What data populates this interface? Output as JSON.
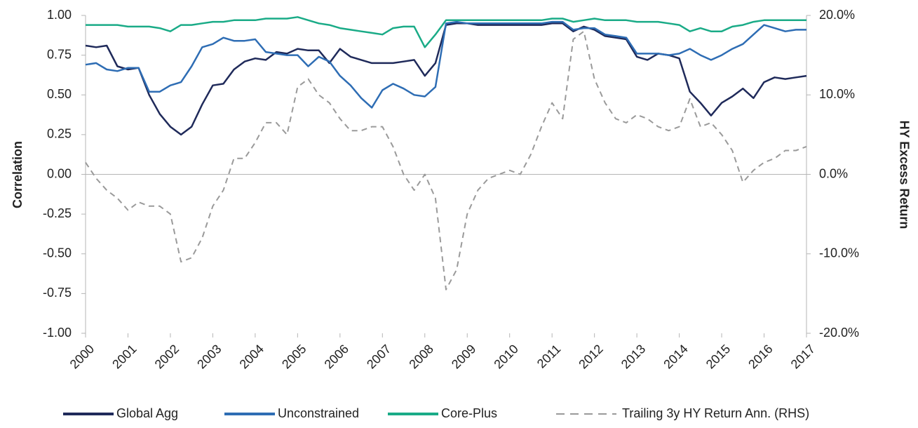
{
  "chart_data": {
    "type": "line",
    "y_label": "Correlation",
    "y2_label": "HY Excess Return",
    "x": [
      2000,
      2000.25,
      2000.5,
      2000.75,
      2001,
      2001.25,
      2001.5,
      2001.75,
      2002,
      2002.25,
      2002.5,
      2002.75,
      2003,
      2003.25,
      2003.5,
      2003.75,
      2004,
      2004.25,
      2004.5,
      2004.75,
      2005,
      2005.25,
      2005.5,
      2005.75,
      2006,
      2006.25,
      2006.5,
      2006.75,
      2007,
      2007.25,
      2007.5,
      2007.75,
      2008,
      2008.25,
      2008.5,
      2008.75,
      2009,
      2009.25,
      2009.5,
      2009.75,
      2010,
      2010.25,
      2010.5,
      2010.75,
      2011,
      2011.25,
      2011.5,
      2011.75,
      2012,
      2012.25,
      2012.5,
      2012.75,
      2013,
      2013.25,
      2013.5,
      2013.75,
      2014,
      2014.25,
      2014.5,
      2014.75,
      2015,
      2015.25,
      2015.5,
      2015.75,
      2016,
      2016.25,
      2016.5,
      2016.75,
      2017
    ],
    "xlim": [
      2000,
      2017
    ],
    "xticks": [
      2000,
      2001,
      2002,
      2003,
      2004,
      2005,
      2006,
      2007,
      2008,
      2009,
      2010,
      2011,
      2012,
      2013,
      2014,
      2015,
      2016,
      2017
    ],
    "ylim": [
      -1,
      1
    ],
    "yticks": [
      {
        "value": 1,
        "label": "1.00"
      },
      {
        "value": 0.75,
        "label": "0.75"
      },
      {
        "value": 0.5,
        "label": "0.50"
      },
      {
        "value": 0.25,
        "label": "0.25"
      },
      {
        "value": 0,
        "label": "0.00"
      },
      {
        "value": -0.25,
        "label": "-0.25"
      },
      {
        "value": -0.5,
        "label": "-0.50"
      },
      {
        "value": -0.75,
        "label": "-0.75"
      },
      {
        "value": -1,
        "label": "-1.00"
      }
    ],
    "y2lim": [
      -20,
      20
    ],
    "y2ticks": [
      {
        "value": 20,
        "label": "20.0%"
      },
      {
        "value": 10,
        "label": "10.0%"
      },
      {
        "value": 0,
        "label": "0.0%"
      },
      {
        "value": -10,
        "label": "-10.0%"
      },
      {
        "value": -20,
        "label": "-20.0%"
      }
    ],
    "series": [
      {
        "name": "Global Agg",
        "color": "#1f2a5a",
        "values": [
          0.81,
          0.8,
          0.81,
          0.68,
          0.66,
          0.67,
          0.5,
          0.38,
          0.3,
          0.25,
          0.3,
          0.44,
          0.56,
          0.57,
          0.66,
          0.71,
          0.73,
          0.72,
          0.77,
          0.76,
          0.79,
          0.78,
          0.78,
          0.7,
          0.79,
          0.74,
          0.72,
          0.7,
          0.7,
          0.7,
          0.71,
          0.72,
          0.62,
          0.7,
          0.94,
          0.95,
          0.95,
          0.94,
          0.94,
          0.94,
          0.94,
          0.94,
          0.94,
          0.94,
          0.95,
          0.95,
          0.9,
          0.93,
          0.91,
          0.87,
          0.86,
          0.85,
          0.74,
          0.72,
          0.76,
          0.75,
          0.73,
          0.52,
          0.45,
          0.37,
          0.45,
          0.49,
          0.54,
          0.48,
          0.58,
          0.61,
          0.6,
          0.61,
          0.62
        ]
      },
      {
        "name": "Unconstrained",
        "color": "#2e6db4",
        "values": [
          0.69,
          0.7,
          0.66,
          0.65,
          0.67,
          0.67,
          0.52,
          0.52,
          0.56,
          0.58,
          0.68,
          0.8,
          0.82,
          0.86,
          0.84,
          0.84,
          0.85,
          0.77,
          0.76,
          0.75,
          0.75,
          0.68,
          0.74,
          0.71,
          0.62,
          0.56,
          0.48,
          0.42,
          0.53,
          0.57,
          0.54,
          0.5,
          0.49,
          0.55,
          0.95,
          0.96,
          0.95,
          0.95,
          0.95,
          0.95,
          0.95,
          0.95,
          0.95,
          0.95,
          0.96,
          0.96,
          0.91,
          0.92,
          0.92,
          0.88,
          0.87,
          0.86,
          0.76,
          0.76,
          0.76,
          0.75,
          0.76,
          0.79,
          0.75,
          0.72,
          0.75,
          0.79,
          0.82,
          0.88,
          0.94,
          0.92,
          0.9,
          0.91,
          0.91
        ]
      },
      {
        "name": "Core-Plus",
        "color": "#1aab87",
        "values": [
          0.94,
          0.94,
          0.94,
          0.94,
          0.93,
          0.93,
          0.93,
          0.92,
          0.9,
          0.94,
          0.94,
          0.95,
          0.96,
          0.96,
          0.97,
          0.97,
          0.97,
          0.98,
          0.98,
          0.98,
          0.99,
          0.97,
          0.95,
          0.94,
          0.92,
          0.91,
          0.9,
          0.89,
          0.88,
          0.92,
          0.93,
          0.93,
          0.8,
          0.88,
          0.97,
          0.97,
          0.97,
          0.97,
          0.97,
          0.97,
          0.97,
          0.97,
          0.97,
          0.97,
          0.98,
          0.98,
          0.96,
          0.97,
          0.98,
          0.97,
          0.97,
          0.97,
          0.96,
          0.96,
          0.96,
          0.95,
          0.94,
          0.9,
          0.92,
          0.9,
          0.9,
          0.93,
          0.94,
          0.96,
          0.97,
          0.97,
          0.97,
          0.97,
          0.97
        ]
      },
      {
        "name": "Trailing 3y HY Return Ann. (RHS)",
        "color": "#9a9a9a",
        "axis": "y2",
        "dashed": true,
        "values": [
          1.5,
          -0.5,
          -2,
          -3,
          -4.5,
          -3.5,
          -4,
          -4,
          -5,
          -11,
          -10.5,
          -8,
          -4,
          -2,
          2,
          2,
          4,
          6.5,
          6.5,
          5,
          11,
          12,
          10,
          9,
          7,
          5.5,
          5.5,
          6,
          6,
          3.5,
          0,
          -2,
          0,
          -3,
          -14.5,
          -12,
          -5,
          -2,
          -0.5,
          0,
          0.5,
          0,
          2.5,
          6,
          9,
          7,
          17,
          18,
          12,
          9,
          7,
          6.5,
          7.5,
          7,
          6,
          5.5,
          6,
          9.5,
          6,
          6.5,
          5,
          3,
          -1,
          0.5,
          1.5,
          2,
          3,
          3,
          3.5
        ]
      }
    ]
  }
}
